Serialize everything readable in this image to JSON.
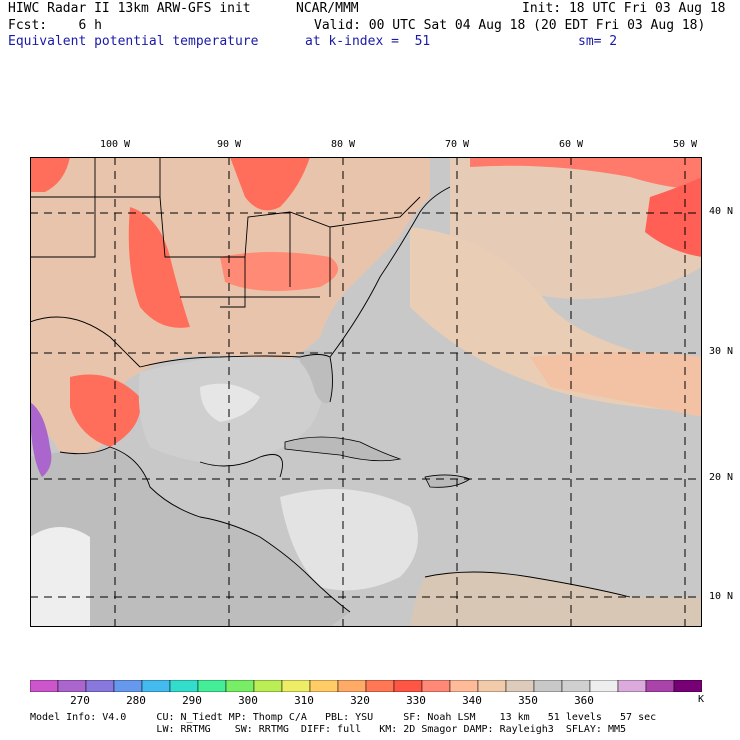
{
  "header": {
    "title": "HIWC Radar II 13km ARW-GFS init",
    "org": "NCAR/MMM",
    "init": "Init: 18 UTC Fri 03 Aug 18",
    "fcst": "Fcst:    6 h",
    "valid": "Valid: 00 UTC Sat 04 Aug 18 (20 EDT Fri 03 Aug 18)",
    "field": "Equivalent potential temperature",
    "level": "at k-index =  51",
    "smooth": "sm= 2"
  },
  "map": {
    "lon_labels": [
      "100 W",
      "90 W",
      "80 W",
      "70 W",
      "60 W",
      "50 W"
    ],
    "lat_labels": [
      "40 N",
      "30 N",
      "20 N",
      "10 N"
    ]
  },
  "colorbar": {
    "colors": [
      "#cc55cc",
      "#aa66cc",
      "#8877dd",
      "#6699ee",
      "#44bbee",
      "#33ddcc",
      "#44ee99",
      "#77ee66",
      "#bbee55",
      "#eeee66",
      "#ffcc66",
      "#ffaa66",
      "#ff7755",
      "#ff5544",
      "#ff8877",
      "#ffbb99",
      "#f2ccaa",
      "#ddccbb",
      "#c8c8c8",
      "#d0d0d0",
      "#eeeeee",
      "#ddaadd",
      "#aa44aa",
      "#770077"
    ],
    "labels": [
      "270",
      "280",
      "290",
      "300",
      "310",
      "320",
      "330",
      "340",
      "350",
      "360"
    ],
    "unit": "K"
  },
  "footer": {
    "line1": "Model Info: V4.0     CU: N_Tiedt MP: Thomp C/A   PBL: YSU     SF: Noah LSM    13 km   51 levels   57 sec",
    "line2": "                     LW: RRTMG    SW: RRTMG  DIFF: full   KM: 2D Smagor DAMP: Rayleigh3  SFLAY: MM5"
  }
}
